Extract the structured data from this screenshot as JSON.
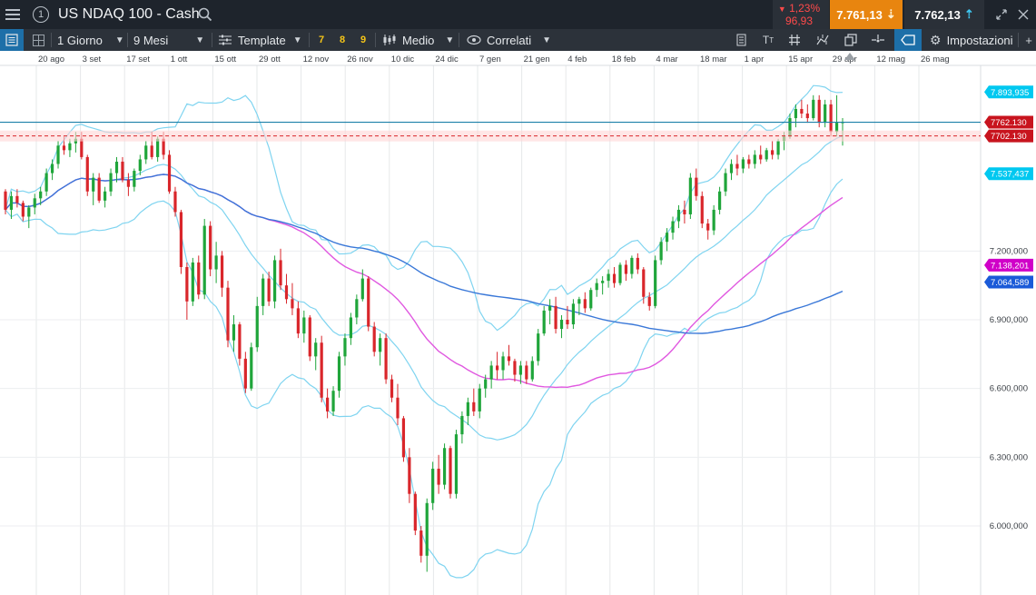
{
  "title_bar": {
    "menu_icon": "hamburger-icon",
    "info_icon": "info-circle-icon",
    "info_glyph": "1",
    "instrument": "US NDAQ 100 - Cash",
    "search_icon": "magnifier-icon",
    "change_percent": "1,23%",
    "change_points": "96,93",
    "change_direction_icon": "down-triangle-icon",
    "sell_price": "7.761,13",
    "buy_price": "7.762,13",
    "window_icons": [
      "expand-icon",
      "close-icon"
    ]
  },
  "toolbar": {
    "panel_icon": "panel-icon",
    "layout_icon": "grid-icon",
    "interval": "1 Giorno",
    "range": "9 Mesi",
    "template_label": "Template",
    "quick_intervals": [
      "7",
      "8",
      "9"
    ],
    "indicator_label": "Medio",
    "correlated_label": "Correlati",
    "right_icons": [
      "notes-icon",
      "text-size-icon",
      "hash-icon",
      "drawing-icon",
      "copy-icon",
      "crosshair-icon",
      "label-icon"
    ],
    "settings_label": "Impostazioni"
  },
  "chart_data": {
    "type": "line",
    "instrument": "US NDAQ 100 - Cash",
    "x_labels": [
      "20 ago",
      "3 set",
      "17 set",
      "1 ott",
      "15 ott",
      "29 ott",
      "12 nov",
      "26 nov",
      "10 dic",
      "24 dic",
      "7 gen",
      "21 gen",
      "4 feb",
      "18 feb",
      "4 mar",
      "18 mar",
      "1 apr",
      "15 apr",
      "29 apr",
      "12 mag",
      "26 mag"
    ],
    "y_ticks": [
      "6.000,000",
      "6.300,000",
      "6.600,000",
      "6.900,000",
      "7.200,000"
    ],
    "ylim": [
      5730,
      8120
    ],
    "grid": true,
    "price_tags": [
      {
        "label": "7.893,935",
        "value": 7893.935,
        "color": "#00c8f0"
      },
      {
        "label": "7762.130",
        "value": 7762.13,
        "color": "#c8141e"
      },
      {
        "label": "7702.130",
        "value": 7702.13,
        "color": "#c8141e"
      },
      {
        "label": "7.537,437",
        "value": 7537.437,
        "color": "#00c8f0"
      },
      {
        "label": "7.138,201",
        "value": 7138.201,
        "color": "#d000c8"
      },
      {
        "label": "7.064,589",
        "value": 7064.589,
        "color": "#1a5ad8"
      }
    ],
    "reference_lines": {
      "current_price": 7762.13,
      "dashed_level": 7702.13
    },
    "candles": [
      [
        7460,
        7470,
        7360,
        7380
      ],
      [
        7380,
        7460,
        7340,
        7440
      ],
      [
        7440,
        7470,
        7390,
        7410
      ],
      [
        7410,
        7420,
        7330,
        7350
      ],
      [
        7350,
        7400,
        7300,
        7390
      ],
      [
        7390,
        7450,
        7360,
        7430
      ],
      [
        7430,
        7480,
        7400,
        7460
      ],
      [
        7460,
        7560,
        7440,
        7540
      ],
      [
        7540,
        7600,
        7510,
        7580
      ],
      [
        7580,
        7680,
        7560,
        7660
      ],
      [
        7660,
        7700,
        7620,
        7640
      ],
      [
        7640,
        7690,
        7610,
        7670
      ],
      [
        7670,
        7720,
        7630,
        7690
      ],
      [
        7690,
        7720,
        7600,
        7610
      ],
      [
        7610,
        7620,
        7440,
        7460
      ],
      [
        7460,
        7540,
        7400,
        7520
      ],
      [
        7520,
        7540,
        7410,
        7420
      ],
      [
        7420,
        7480,
        7390,
        7460
      ],
      [
        7460,
        7560,
        7440,
        7540
      ],
      [
        7540,
        7610,
        7500,
        7590
      ],
      [
        7590,
        7610,
        7500,
        7510
      ],
      [
        7510,
        7540,
        7440,
        7480
      ],
      [
        7480,
        7560,
        7460,
        7550
      ],
      [
        7550,
        7620,
        7530,
        7600
      ],
      [
        7600,
        7680,
        7580,
        7660
      ],
      [
        7660,
        7720,
        7600,
        7610
      ],
      [
        7610,
        7700,
        7590,
        7690
      ],
      [
        7690,
        7720,
        7600,
        7620
      ],
      [
        7620,
        7640,
        7450,
        7460
      ],
      [
        7460,
        7480,
        7350,
        7370
      ],
      [
        7370,
        7380,
        7100,
        7130
      ],
      [
        7130,
        7150,
        6900,
        6980
      ],
      [
        6980,
        7170,
        6960,
        7150
      ],
      [
        7150,
        7180,
        6990,
        7010
      ],
      [
        7010,
        7340,
        6990,
        7310
      ],
      [
        7310,
        7330,
        7090,
        7120
      ],
      [
        7120,
        7240,
        7060,
        7180
      ],
      [
        7180,
        7200,
        7000,
        7040
      ],
      [
        7040,
        7070,
        6780,
        6810
      ],
      [
        6810,
        6920,
        6760,
        6880
      ],
      [
        6880,
        6890,
        6700,
        6730
      ],
      [
        6730,
        6760,
        6580,
        6600
      ],
      [
        6600,
        6800,
        6590,
        6780
      ],
      [
        6780,
        7000,
        6760,
        6960
      ],
      [
        6960,
        7100,
        6920,
        7080
      ],
      [
        7080,
        7110,
        6960,
        6980
      ],
      [
        6980,
        7180,
        6950,
        7160
      ],
      [
        7160,
        7210,
        7030,
        7050
      ],
      [
        7050,
        7100,
        6970,
        6990
      ],
      [
        6990,
        7060,
        6920,
        6950
      ],
      [
        6950,
        6980,
        6820,
        6840
      ],
      [
        6840,
        6940,
        6800,
        6910
      ],
      [
        6910,
        6920,
        6720,
        6740
      ],
      [
        6740,
        6820,
        6680,
        6800
      ],
      [
        6800,
        6830,
        6540,
        6560
      ],
      [
        6560,
        6600,
        6470,
        6500
      ],
      [
        6500,
        6610,
        6480,
        6590
      ],
      [
        6590,
        6760,
        6560,
        6740
      ],
      [
        6740,
        6840,
        6700,
        6820
      ],
      [
        6820,
        6930,
        6790,
        6910
      ],
      [
        6910,
        7010,
        6880,
        6990
      ],
      [
        6990,
        7120,
        6980,
        7080
      ],
      [
        7080,
        7090,
        6850,
        6870
      ],
      [
        6870,
        6890,
        6740,
        6760
      ],
      [
        6760,
        6840,
        6700,
        6820
      ],
      [
        6820,
        6840,
        6620,
        6640
      ],
      [
        6640,
        6660,
        6540,
        6560
      ],
      [
        6560,
        6620,
        6440,
        6470
      ],
      [
        6470,
        6480,
        6280,
        6300
      ],
      [
        6300,
        6340,
        6100,
        6140
      ],
      [
        6140,
        6150,
        5960,
        5980
      ],
      [
        5980,
        6000,
        5840,
        5870
      ],
      [
        5870,
        6120,
        5800,
        6100
      ],
      [
        6100,
        6280,
        6070,
        6250
      ],
      [
        6250,
        6310,
        6140,
        6180
      ],
      [
        6180,
        6360,
        6160,
        6340
      ],
      [
        6340,
        6350,
        6120,
        6140
      ],
      [
        6140,
        6420,
        6120,
        6400
      ],
      [
        6400,
        6500,
        6360,
        6480
      ],
      [
        6480,
        6560,
        6440,
        6540
      ],
      [
        6540,
        6600,
        6480,
        6500
      ],
      [
        6500,
        6620,
        6470,
        6600
      ],
      [
        6600,
        6660,
        6560,
        6640
      ],
      [
        6640,
        6720,
        6600,
        6700
      ],
      [
        6700,
        6760,
        6640,
        6680
      ],
      [
        6680,
        6760,
        6640,
        6740
      ],
      [
        6740,
        6790,
        6700,
        6720
      ],
      [
        6720,
        6730,
        6630,
        6660
      ],
      [
        6660,
        6720,
        6620,
        6700
      ],
      [
        6700,
        6720,
        6620,
        6640
      ],
      [
        6640,
        6740,
        6630,
        6720
      ],
      [
        6720,
        6860,
        6700,
        6840
      ],
      [
        6840,
        6960,
        6830,
        6940
      ],
      [
        6940,
        6990,
        6880,
        6960
      ],
      [
        6960,
        7000,
        6840,
        6860
      ],
      [
        6860,
        6920,
        6820,
        6900
      ],
      [
        6900,
        6960,
        6860,
        6880
      ],
      [
        6880,
        6990,
        6860,
        6970
      ],
      [
        6970,
        7000,
        6920,
        6990
      ],
      [
        6990,
        7020,
        6930,
        6950
      ],
      [
        6950,
        7040,
        6940,
        7030
      ],
      [
        7030,
        7080,
        7000,
        7060
      ],
      [
        7060,
        7090,
        7010,
        7070
      ],
      [
        7070,
        7120,
        7040,
        7100
      ],
      [
        7100,
        7130,
        7040,
        7060
      ],
      [
        7060,
        7150,
        7050,
        7140
      ],
      [
        7140,
        7160,
        7070,
        7100
      ],
      [
        7100,
        7180,
        7080,
        7170
      ],
      [
        7170,
        7190,
        7100,
        7120
      ],
      [
        7120,
        7130,
        6970,
        7000
      ],
      [
        7000,
        7020,
        6940,
        6960
      ],
      [
        6960,
        7180,
        6950,
        7160
      ],
      [
        7160,
        7260,
        7140,
        7240
      ],
      [
        7240,
        7300,
        7200,
        7280
      ],
      [
        7280,
        7350,
        7250,
        7330
      ],
      [
        7330,
        7400,
        7300,
        7380
      ],
      [
        7380,
        7420,
        7320,
        7360
      ],
      [
        7360,
        7540,
        7340,
        7520
      ],
      [
        7520,
        7560,
        7420,
        7440
      ],
      [
        7440,
        7460,
        7300,
        7320
      ],
      [
        7320,
        7340,
        7250,
        7290
      ],
      [
        7290,
        7400,
        7270,
        7380
      ],
      [
        7380,
        7480,
        7360,
        7460
      ],
      [
        7460,
        7560,
        7440,
        7540
      ],
      [
        7540,
        7600,
        7510,
        7580
      ],
      [
        7580,
        7620,
        7530,
        7560
      ],
      [
        7560,
        7610,
        7540,
        7600
      ],
      [
        7600,
        7620,
        7560,
        7580
      ],
      [
        7580,
        7640,
        7560,
        7620
      ],
      [
        7620,
        7660,
        7580,
        7600
      ],
      [
        7600,
        7650,
        7590,
        7640
      ],
      [
        7640,
        7680,
        7600,
        7620
      ],
      [
        7620,
        7690,
        7600,
        7680
      ],
      [
        7680,
        7720,
        7640,
        7700
      ],
      [
        7700,
        7800,
        7690,
        7780
      ],
      [
        7780,
        7840,
        7740,
        7820
      ],
      [
        7820,
        7860,
        7780,
        7800
      ],
      [
        7800,
        7840,
        7760,
        7780
      ],
      [
        7780,
        7880,
        7770,
        7860
      ],
      [
        7860,
        7880,
        7740,
        7760
      ],
      [
        7760,
        7860,
        7740,
        7840
      ],
      [
        7840,
        7860,
        7700,
        7720
      ],
      [
        7720,
        7880,
        7700,
        7760
      ],
      [
        7760,
        7780,
        7660,
        7762
      ]
    ]
  }
}
